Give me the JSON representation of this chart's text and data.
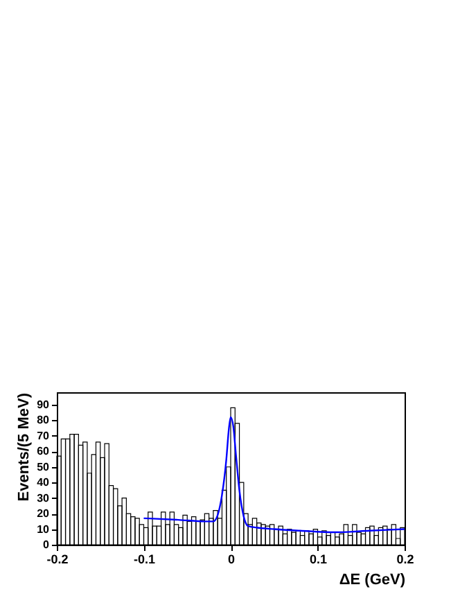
{
  "chart_data": [
    {
      "type": "histogram",
      "xlabel": "ΔE (GeV)",
      "ylabel": "Events/(5 MeV)",
      "bins": [
        -0.2,
        -0.195,
        -0.19,
        -0.185,
        -0.18,
        -0.175,
        -0.17,
        -0.165,
        -0.16,
        -0.155,
        -0.15,
        -0.145,
        -0.14,
        -0.135,
        -0.13,
        -0.125,
        -0.12,
        -0.115,
        -0.11,
        -0.105,
        -0.1,
        -0.095,
        -0.09,
        -0.085,
        -0.08,
        -0.075,
        -0.07,
        -0.065,
        -0.06,
        -0.055,
        -0.05,
        -0.045,
        -0.04,
        -0.035,
        -0.03,
        -0.025,
        -0.02,
        -0.015,
        -0.01,
        -0.005,
        0,
        0.005,
        0.01,
        0.015,
        0.02,
        0.025,
        0.03,
        0.035,
        0.04,
        0.045,
        0.05,
        0.055,
        0.06,
        0.065,
        0.07,
        0.075,
        0.08,
        0.085,
        0.09,
        0.095,
        0.1,
        0.105,
        0.11,
        0.115,
        0.12,
        0.125,
        0.13,
        0.135,
        0.14,
        0.145,
        0.15,
        0.155,
        0.16,
        0.165,
        0.17,
        0.175,
        0.18,
        0.185,
        0.19,
        0.195,
        0.2
      ],
      "values": [
        57,
        68,
        68,
        71,
        71,
        64,
        66,
        46,
        58,
        66,
        56,
        65,
        38,
        36,
        25,
        30,
        20,
        18,
        17,
        13,
        11,
        21,
        12,
        12,
        21,
        13,
        21,
        13,
        11,
        19,
        15,
        18,
        15,
        16,
        20,
        17,
        22,
        17,
        35,
        50,
        88,
        78,
        40,
        20,
        13,
        17,
        14,
        13,
        12,
        13,
        10,
        12,
        7,
        10,
        8,
        9,
        6,
        9,
        7,
        10,
        5,
        9,
        6,
        8,
        5,
        7,
        13,
        6,
        13,
        8,
        7,
        11,
        12,
        6,
        11,
        12,
        10,
        13,
        4,
        11
      ],
      "color": "#000000",
      "series": [
        {
          "type": "line",
          "color": "#0000ff",
          "x": [
            -0.1,
            -0.06,
            -0.03,
            -0.02,
            -0.015,
            -0.01,
            -0.005,
            -0.002,
            0,
            0.003,
            0.006,
            0.01,
            0.015,
            0.02,
            0.03,
            0.05,
            0.08,
            0.12,
            0.16,
            0.2
          ],
          "values": [
            17,
            16,
            15,
            15,
            19,
            32,
            55,
            75,
            82,
            76,
            58,
            35,
            18,
            12,
            11,
            10,
            9,
            8,
            9,
            10
          ]
        }
      ],
      "xlim": [
        -0.2,
        0.2
      ],
      "xticks": [
        -0.2,
        -0.1,
        0,
        0.1,
        0.2
      ],
      "ylim": [
        0,
        98
      ],
      "yticks": [
        0,
        10,
        20,
        30,
        40,
        50,
        60,
        70,
        80,
        90
      ],
      "grid": false
    }
  ]
}
